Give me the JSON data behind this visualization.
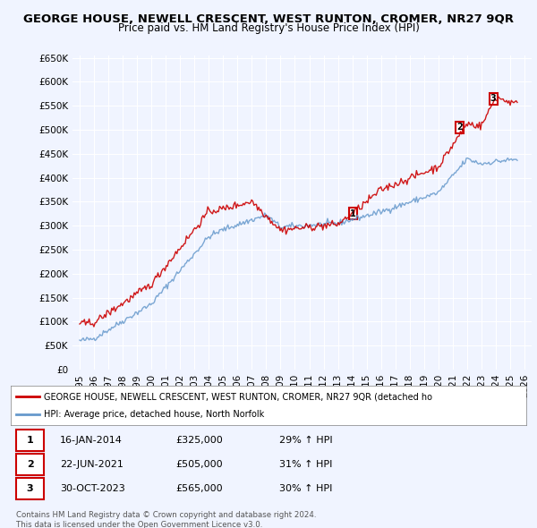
{
  "title": "GEORGE HOUSE, NEWELL CRESCENT, WEST RUNTON, CROMER, NR27 9QR",
  "subtitle": "Price paid vs. HM Land Registry's House Price Index (HPI)",
  "ylabel_ticks": [
    "£0",
    "£50K",
    "£100K",
    "£150K",
    "£200K",
    "£250K",
    "£300K",
    "£350K",
    "£400K",
    "£450K",
    "£500K",
    "£550K",
    "£600K",
    "£650K"
  ],
  "ytick_vals": [
    0,
    50000,
    100000,
    150000,
    200000,
    250000,
    300000,
    350000,
    400000,
    450000,
    500000,
    550000,
    600000,
    650000
  ],
  "xlim_start": 1994.5,
  "xlim_end": 2026.5,
  "ylim_min": 0,
  "ylim_max": 650000,
  "background_color": "#f0f4ff",
  "plot_bg_color": "#f0f4ff",
  "grid_color": "#ffffff",
  "red_color": "#cc0000",
  "blue_color": "#6699cc",
  "sale_markers": [
    {
      "year": 2014.04,
      "price": 325000,
      "label": "1"
    },
    {
      "year": 2021.47,
      "price": 505000,
      "label": "2"
    },
    {
      "year": 2023.83,
      "price": 565000,
      "label": "3"
    }
  ],
  "legend_line1": "GEORGE HOUSE, NEWELL CRESCENT, WEST RUNTON, CROMER, NR27 9QR (detached ho",
  "legend_line2": "HPI: Average price, detached house, North Norfolk",
  "table_rows": [
    {
      "num": "1",
      "date": "16-JAN-2014",
      "price": "£325,000",
      "change": "29% ↑ HPI"
    },
    {
      "num": "2",
      "date": "22-JUN-2021",
      "price": "£505,000",
      "change": "31% ↑ HPI"
    },
    {
      "num": "3",
      "date": "30-OCT-2023",
      "price": "£565,000",
      "change": "30% ↑ HPI"
    }
  ],
  "footer": "Contains HM Land Registry data © Crown copyright and database right 2024.\nThis data is licensed under the Open Government Licence v3.0.",
  "xtick_years": [
    1995,
    1996,
    1997,
    1998,
    1999,
    2000,
    2001,
    2002,
    2003,
    2004,
    2005,
    2006,
    2007,
    2008,
    2009,
    2010,
    2011,
    2012,
    2013,
    2014,
    2015,
    2016,
    2017,
    2018,
    2019,
    2020,
    2021,
    2022,
    2023,
    2024,
    2025,
    2026
  ]
}
